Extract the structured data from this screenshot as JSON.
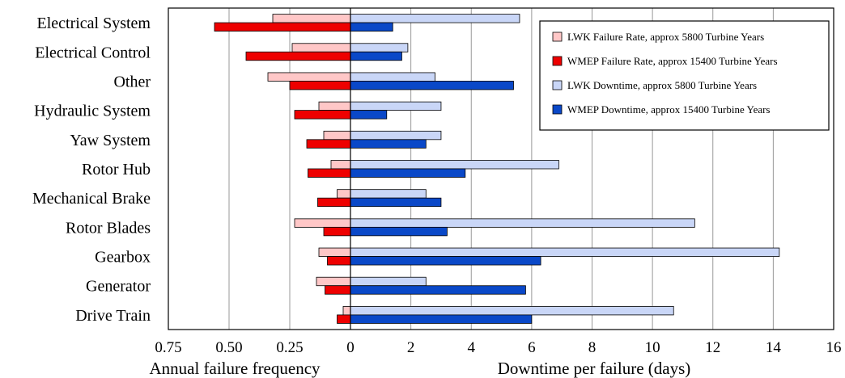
{
  "chart_data": {
    "type": "bar",
    "orientation": "horizontal",
    "layout": "back-to-back",
    "categories": [
      "Electrical System",
      "Electrical Control",
      "Other",
      "Hydraulic System",
      "Yaw System",
      "Rotor Hub",
      "Mechanical Brake",
      "Rotor Blades",
      "Gearbox",
      "Generator",
      "Drive Train"
    ],
    "left_axis": {
      "label": "Annual failure frequency",
      "ticks": [
        "0.75",
        "0.50",
        "0.25",
        "0"
      ],
      "range": [
        0,
        0.75
      ],
      "direction": "reversed",
      "grid": true
    },
    "right_axis": {
      "label": "Downtime per failure (days)",
      "ticks": [
        "2",
        "4",
        "6",
        "8",
        "10",
        "12",
        "14",
        "16"
      ],
      "range": [
        0,
        16
      ],
      "grid": true
    },
    "series": [
      {
        "name": "LWK Failure Rate, approx 5800 Turbine Years",
        "side": "left",
        "color": "#ffc7c7",
        "values": [
          0.32,
          0.24,
          0.34,
          0.13,
          0.11,
          0.08,
          0.055,
          0.23,
          0.13,
          0.14,
          0.03
        ]
      },
      {
        "name": "WMEP Failure Rate, approx 15400 Turbine Years",
        "side": "left",
        "color": "#ee0000",
        "values": [
          0.56,
          0.43,
          0.25,
          0.23,
          0.18,
          0.175,
          0.135,
          0.11,
          0.095,
          0.105,
          0.055
        ]
      },
      {
        "name": "LWK Downtime, approx 5800 Turbine Years",
        "side": "right",
        "color": "#c9d6f7",
        "values": [
          5.6,
          1.9,
          2.8,
          3.0,
          3.0,
          6.9,
          2.5,
          11.4,
          14.2,
          2.5,
          10.7
        ]
      },
      {
        "name": "WMEP Downtime, approx 15400 Turbine Years",
        "side": "right",
        "color": "#0a48c8",
        "values": [
          1.4,
          1.7,
          5.4,
          1.2,
          2.5,
          3.8,
          3.0,
          3.2,
          6.3,
          5.8,
          6.0
        ]
      }
    ],
    "legend_position": "top-right"
  }
}
